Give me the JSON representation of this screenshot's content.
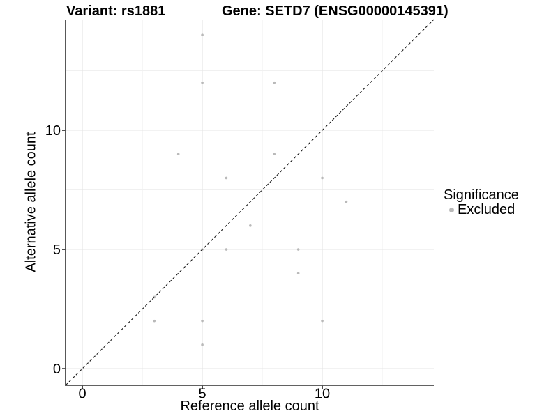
{
  "figure": {
    "title_variant": "Variant: rs1881",
    "title_gene": "Gene: SETD7 (ENSG00000145391)"
  },
  "axes": {
    "x_label": "Reference allele count",
    "y_label": "Alternative allele count"
  },
  "legend": {
    "title": "Significance",
    "items": [
      {
        "label": "Excluded",
        "color": "#b9b9b9"
      }
    ]
  },
  "chart_data": {
    "type": "scatter",
    "title": "Variant: rs1881 | Gene: SETD7 (ENSG00000145391)",
    "xlabel": "Reference allele count",
    "ylabel": "Alternative allele count",
    "xlim": [
      -0.7,
      14.65
    ],
    "ylim": [
      -0.7,
      14.65
    ],
    "x_ticks": [
      0,
      5,
      10
    ],
    "y_ticks": [
      0,
      5,
      10
    ],
    "x_minor_ticks": [
      2.5,
      7.5,
      12.5
    ],
    "y_minor_ticks": [
      2.5,
      7.5,
      12.5
    ],
    "grid": "major+minor",
    "legend_position": "right-center",
    "identity_line": {
      "style": "dashed",
      "slope": 1,
      "intercept": 0,
      "color": "#1a1a1a"
    },
    "series": [
      {
        "name": "Excluded",
        "color": "#b9b9b9",
        "marker": "circle",
        "points": [
          [
            3,
            2
          ],
          [
            3,
            3
          ],
          [
            4,
            9
          ],
          [
            5,
            1
          ],
          [
            5,
            2
          ],
          [
            5,
            5
          ],
          [
            5,
            12
          ],
          [
            5,
            14
          ],
          [
            6,
            5
          ],
          [
            6,
            8
          ],
          [
            7,
            6
          ],
          [
            8,
            9
          ],
          [
            8,
            12
          ],
          [
            9,
            4
          ],
          [
            9,
            5
          ],
          [
            10,
            2
          ],
          [
            10,
            8
          ],
          [
            11,
            7
          ]
        ]
      }
    ]
  },
  "style": {
    "grid_major_color": "#e4e4e4",
    "grid_minor_color": "#f0f0f0",
    "axis_line_color": "#2f2f2f",
    "tick_color": "#2f2f2f",
    "text_color": "#000000",
    "point_color": "#b9b9b9",
    "identity_line_color": "#1a1a1a",
    "background_color": "#ffffff"
  }
}
